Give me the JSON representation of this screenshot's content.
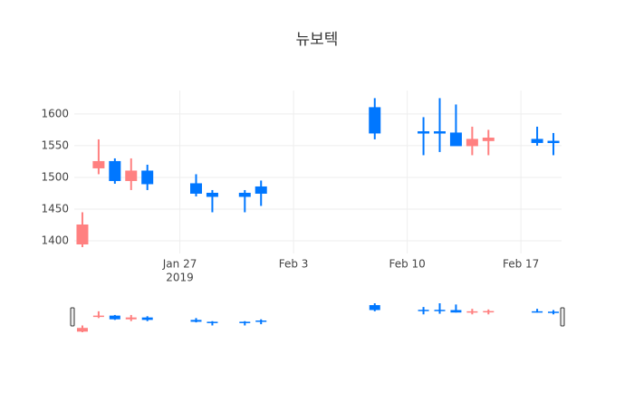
{
  "chart_data": {
    "type": "candlestick",
    "title": "뉴보텍",
    "x": [
      "2019-01-21",
      "2019-01-22",
      "2019-01-23",
      "2019-01-24",
      "2019-01-25",
      "2019-01-28",
      "2019-01-29",
      "2019-01-31",
      "2019-02-01",
      "2019-02-08",
      "2019-02-11",
      "2019-02-12",
      "2019-02-13",
      "2019-02-14",
      "2019-02-15",
      "2019-02-18",
      "2019-02-19"
    ],
    "open": [
      1395,
      1515,
      1525,
      1495,
      1510,
      1490,
      1475,
      1475,
      1485,
      1610,
      1572,
      1572,
      1570,
      1550,
      1558,
      1560,
      1557
    ],
    "high": [
      1445,
      1560,
      1530,
      1530,
      1520,
      1505,
      1480,
      1480,
      1495,
      1625,
      1595,
      1625,
      1615,
      1580,
      1575,
      1580,
      1570
    ],
    "low": [
      1390,
      1505,
      1490,
      1480,
      1480,
      1470,
      1445,
      1445,
      1455,
      1560,
      1535,
      1540,
      1550,
      1535,
      1535,
      1550,
      1535
    ],
    "close": [
      1425,
      1525,
      1495,
      1510,
      1490,
      1475,
      1470,
      1470,
      1475,
      1570,
      1570,
      1570,
      1550,
      1560,
      1562,
      1555,
      1555
    ],
    "increasing_color": "#ff8080",
    "decreasing_color": "#0077ff",
    "xlim": [
      "2019-01-20T12:00Z",
      "2019-02-19T12:00Z"
    ],
    "xticks": [
      {
        "value": "2019-01-27",
        "label": "Jan 27"
      },
      {
        "value": "2019-02-03",
        "label": "Feb 3"
      },
      {
        "value": "2019-02-10",
        "label": "Feb 10"
      },
      {
        "value": "2019-02-17",
        "label": "Feb 17"
      }
    ],
    "x_year_label": "2019",
    "ylim": [
      1380,
      1637
    ],
    "yticks": [
      1400,
      1450,
      1500,
      1550,
      1600
    ],
    "grid": true,
    "rangeslider": true
  }
}
